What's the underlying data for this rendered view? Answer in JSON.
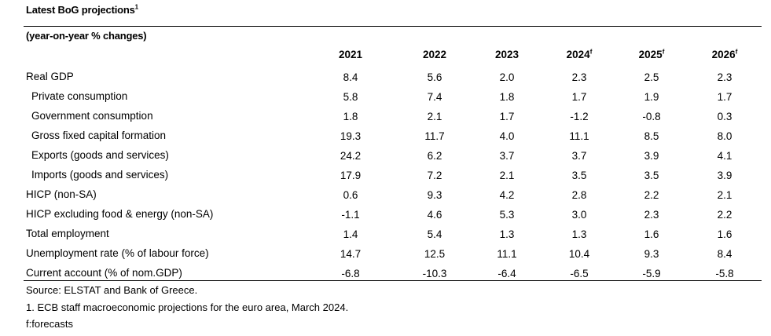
{
  "title": "Latest BoG projections",
  "title_sup": "1",
  "subtitle": "(year-on-year % changes)",
  "columns": [
    {
      "label": "2021",
      "sup": ""
    },
    {
      "label": "2022",
      "sup": ""
    },
    {
      "label": "2023",
      "sup": ""
    },
    {
      "label": "2024",
      "sup": "f"
    },
    {
      "label": "2025",
      "sup": "f"
    },
    {
      "label": "2026",
      "sup": "f"
    }
  ],
  "rows": [
    {
      "label": "Real GDP",
      "values": [
        "8.4",
        "5.6",
        "2.0",
        "2.3",
        "2.5",
        "2.3"
      ]
    },
    {
      "label": "Private consumption",
      "values": [
        "5.8",
        "7.4",
        "1.8",
        "1.7",
        "1.9",
        "1.7"
      ]
    },
    {
      "label": "Government consumption",
      "values": [
        "1.8",
        "2.1",
        "1.7",
        "-1.2",
        "-0.8",
        "0.3"
      ]
    },
    {
      "label": "Gross fixed capital formation",
      "values": [
        "19.3",
        "11.7",
        "4.0",
        "11.1",
        "8.5",
        "8.0"
      ]
    },
    {
      "label": "Exports (goods and services)",
      "values": [
        "24.2",
        "6.2",
        "3.7",
        "3.7",
        "3.9",
        "4.1"
      ]
    },
    {
      "label": "Imports (goods and services)",
      "values": [
        "17.9",
        "7.2",
        "2.1",
        "3.5",
        "3.5",
        "3.9"
      ]
    },
    {
      "label": "HICP (non-SA)",
      "values": [
        "0.6",
        "9.3",
        "4.2",
        "2.8",
        "2.2",
        "2.1"
      ]
    },
    {
      "label": "HICP excluding food & energy (non-SA)",
      "values": [
        "-1.1",
        "4.6",
        "5.3",
        "3.0",
        "2.3",
        "2.2"
      ]
    },
    {
      "label": "Total employment",
      "values": [
        "1.4",
        "5.4",
        "1.3",
        "1.3",
        "1.6",
        "1.6"
      ]
    },
    {
      "label": "Unemployment rate (% of labour force)",
      "values": [
        "14.7",
        "12.5",
        "11.1",
        "10.4",
        "9.3",
        "8.4"
      ]
    },
    {
      "label": "Current account (% of nom.GDP)",
      "values": [
        "-6.8",
        "-10.3",
        "-6.4",
        "-6.5",
        "-5.9",
        "-5.8"
      ]
    }
  ],
  "notes": [
    "Source: ELSTAT and Bank of Greece.",
    "1.  ECB staff macroeconomic projections for the euro area, March 2024.",
    "f:forecasts"
  ]
}
